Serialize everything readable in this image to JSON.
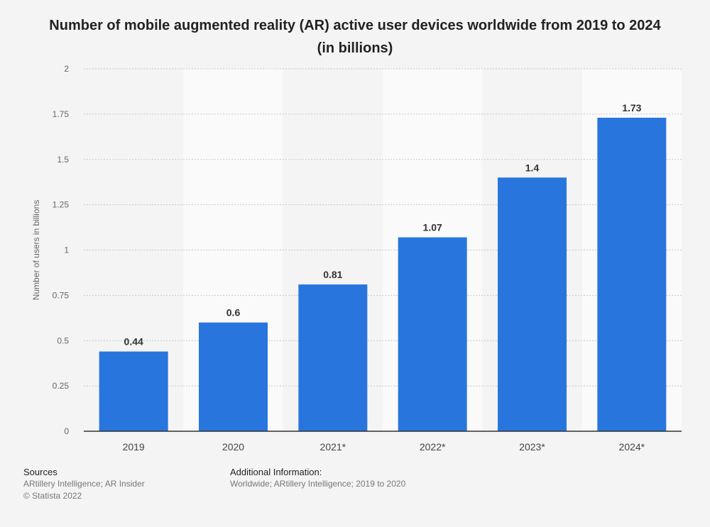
{
  "chart_data": {
    "type": "bar",
    "title": "Number of mobile augmented reality (AR) active user devices worldwide from 2019 to 2024 (in billions)",
    "ylabel": "Number of users in billions",
    "xlabel": "",
    "categories": [
      "2019",
      "2020",
      "2021*",
      "2022*",
      "2023*",
      "2024*"
    ],
    "values": [
      0.44,
      0.6,
      0.81,
      1.07,
      1.4,
      1.73
    ],
    "value_labels": [
      "0.44",
      "0.6",
      "0.81",
      "1.07",
      "1.4",
      "1.73"
    ],
    "ylim": [
      0,
      2
    ],
    "yticks": [
      0,
      0.25,
      0.5,
      0.75,
      1,
      1.25,
      1.5,
      1.75,
      2
    ],
    "ytick_labels": [
      "0",
      "0.25",
      "0.5",
      "0.75",
      "1",
      "1.25",
      "1.5",
      "1.75",
      "2"
    ],
    "grid": true,
    "bar_color": "#2876dd"
  },
  "footer": {
    "sources_heading": "Sources",
    "sources_line1": "ARtillery Intelligence; AR Insider",
    "sources_line2": "© Statista 2022",
    "additional_heading": "Additional Information:",
    "additional_text": "Worldwide; ARtillery Intelligence; 2019 to 2020"
  }
}
